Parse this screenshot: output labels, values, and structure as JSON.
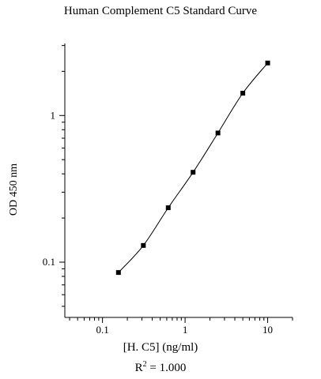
{
  "chart_data": {
    "type": "line",
    "title": "Human Complement C5 Standard Curve",
    "xlabel": "[H. C5] (ng/ml)",
    "ylabel": "OD 450 nm",
    "annotation": {
      "prefix": "R",
      "superscript": "2",
      "suffix": " = 1.000"
    },
    "x_scale": "log",
    "y_scale": "log",
    "xlim": [
      0.035,
      20
    ],
    "ylim": [
      0.042,
      3.1
    ],
    "x_ticks": [
      {
        "value": 0.1,
        "label": "0.1"
      },
      {
        "value": 1,
        "label": "1"
      },
      {
        "value": 10,
        "label": "10"
      }
    ],
    "y_ticks": [
      {
        "value": 0.1,
        "label": "0.1"
      },
      {
        "value": 1,
        "label": "1"
      }
    ],
    "grid": false,
    "marker": "square",
    "series": [
      {
        "x": [
          0.156,
          0.3125,
          0.625,
          1.25,
          2.5,
          5,
          10
        ],
        "y": [
          0.085,
          0.13,
          0.235,
          0.41,
          0.76,
          1.42,
          2.28
        ]
      }
    ]
  }
}
